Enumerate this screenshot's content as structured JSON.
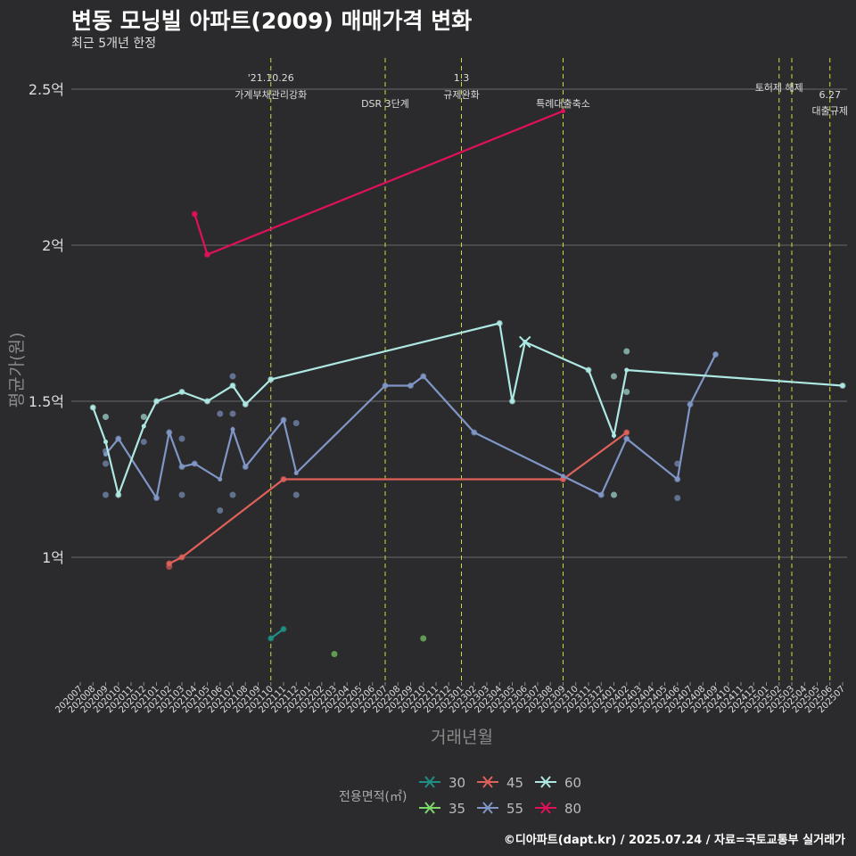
{
  "header": {
    "title": "변동 모닝빌 아파트(2009) 매매가격 변화",
    "subtitle": "최근 5개년 한정"
  },
  "credit": "©디아파트(dapt.kr) / 2025.07.24 / 자료=국토교통부 실거래가",
  "colors": {
    "background": "#2b2b2d",
    "grid": "#6a6a6a",
    "event_line": "#d8d838",
    "s30": "#1f8f86",
    "s35": "#7dd86a",
    "s45": "#e0605a",
    "s55": "#7f96c6",
    "s60": "#aee8e2",
    "s80": "#e0105a"
  },
  "chart_data": {
    "type": "line",
    "title": "변동 모닝빌 아파트(2009) 매매가격 변화",
    "xlabel": "거래년월",
    "ylabel": "평균가(원)",
    "ylim": [
      0.6,
      2.6
    ],
    "yticks": [
      1.0,
      1.5,
      2.0,
      2.5
    ],
    "ytick_labels": [
      "1억",
      "1.5억",
      "2억",
      "2.5억"
    ],
    "x_months": [
      "202007",
      "202008",
      "202009",
      "202010",
      "202011",
      "202012",
      "202101",
      "202102",
      "202103",
      "202104",
      "202105",
      "202106",
      "202107",
      "202108",
      "202109",
      "202110",
      "202111",
      "202112",
      "202201",
      "202202",
      "202203",
      "202204",
      "202205",
      "202206",
      "202207",
      "202208",
      "202209",
      "202210",
      "202211",
      "202212",
      "202301",
      "202302",
      "202303",
      "202304",
      "202305",
      "202306",
      "202307",
      "202308",
      "202309",
      "202310",
      "202311",
      "202312",
      "202401",
      "202402",
      "202403",
      "202404",
      "202405",
      "202406",
      "202407",
      "202408",
      "202409",
      "202410",
      "202411",
      "202412",
      "202501",
      "202502",
      "202503",
      "202504",
      "202505",
      "202506",
      "202507"
    ],
    "legend_title": "전용면적(㎡)",
    "legend_position": "bottom",
    "events": [
      {
        "x": 15,
        "label1": "'21.10.26",
        "label2": "가계부채관리강화"
      },
      {
        "x": 24,
        "label1": "",
        "label2": "DSR 3단계"
      },
      {
        "x": 30,
        "label1": "1.3",
        "label2": "규제완화"
      },
      {
        "x": 38,
        "label1": "",
        "label2": "특례대출축소"
      },
      {
        "x": 55,
        "label1": "",
        "label2": "토허제 해제"
      },
      {
        "x": 56,
        "label1": "",
        "label2": ""
      },
      {
        "x": 59,
        "label1": "6.27",
        "label2": "대출규제"
      }
    ],
    "series": [
      {
        "name": "30",
        "color": "#1f8f86",
        "line": [
          [
            15,
            0.74
          ],
          [
            16,
            0.77
          ]
        ],
        "points": [
          [
            15,
            0.74
          ],
          [
            16,
            0.77
          ]
        ]
      },
      {
        "name": "35",
        "color": "#7dd86a",
        "line": [],
        "points": [
          [
            20,
            0.69
          ],
          [
            27,
            0.74
          ]
        ]
      },
      {
        "name": "45",
        "color": "#e0605a",
        "line": [
          [
            7,
            0.98
          ],
          [
            8,
            1.0
          ],
          [
            16,
            1.25
          ],
          [
            38,
            1.25
          ],
          [
            43,
            1.4
          ]
        ],
        "points": [
          [
            7,
            0.98
          ],
          [
            7,
            0.97
          ],
          [
            8,
            1.0
          ],
          [
            16,
            1.25
          ],
          [
            38,
            1.25
          ],
          [
            43,
            1.4
          ]
        ]
      },
      {
        "name": "55",
        "color": "#7f96c6",
        "line": [
          [
            2,
            1.33
          ],
          [
            3,
            1.38
          ],
          [
            6,
            1.19
          ],
          [
            7,
            1.4
          ],
          [
            8,
            1.29
          ],
          [
            9,
            1.3
          ],
          [
            11,
            1.25
          ],
          [
            12,
            1.41
          ],
          [
            13,
            1.29
          ],
          [
            16,
            1.44
          ],
          [
            17,
            1.27
          ],
          [
            24,
            1.55
          ],
          [
            26,
            1.55
          ],
          [
            27,
            1.58
          ],
          [
            31,
            1.4
          ],
          [
            38,
            1.26
          ],
          [
            41,
            1.2
          ],
          [
            43,
            1.38
          ],
          [
            47,
            1.25
          ],
          [
            48,
            1.49
          ],
          [
            50,
            1.65
          ]
        ],
        "points": [
          [
            2,
            1.3
          ],
          [
            2,
            1.2
          ],
          [
            2,
            1.34
          ],
          [
            3,
            1.38
          ],
          [
            5,
            1.37
          ],
          [
            6,
            1.19
          ],
          [
            7,
            1.4
          ],
          [
            8,
            1.38
          ],
          [
            8,
            1.2
          ],
          [
            8,
            1.29
          ],
          [
            9,
            1.3
          ],
          [
            11,
            1.46
          ],
          [
            11,
            1.15
          ],
          [
            12,
            1.58
          ],
          [
            12,
            1.46
          ],
          [
            12,
            1.2
          ],
          [
            13,
            1.29
          ],
          [
            16,
            1.44
          ],
          [
            17,
            1.43
          ],
          [
            17,
            1.2
          ],
          [
            24,
            1.55
          ],
          [
            26,
            1.55
          ],
          [
            27,
            1.58
          ],
          [
            31,
            1.4
          ],
          [
            41,
            1.2
          ],
          [
            43,
            1.38
          ],
          [
            47,
            1.3
          ],
          [
            47,
            1.19
          ],
          [
            47,
            1.25
          ],
          [
            48,
            1.49
          ],
          [
            50,
            1.65
          ]
        ]
      },
      {
        "name": "60",
        "color": "#aee8e2",
        "line": [
          [
            1,
            1.48
          ],
          [
            2,
            1.37
          ],
          [
            3,
            1.2
          ],
          [
            5,
            1.42
          ],
          [
            6,
            1.5
          ],
          [
            8,
            1.53
          ],
          [
            10,
            1.5
          ],
          [
            12,
            1.55
          ],
          [
            13,
            1.49
          ],
          [
            15,
            1.57
          ],
          [
            33,
            1.75
          ],
          [
            34,
            1.5
          ],
          [
            35,
            1.69
          ],
          [
            40,
            1.6
          ],
          [
            42,
            1.39
          ],
          [
            43,
            1.6
          ],
          [
            60,
            1.55
          ]
        ],
        "points": [
          [
            1,
            1.48
          ],
          [
            2,
            1.45
          ],
          [
            3,
            1.2
          ],
          [
            5,
            1.45
          ],
          [
            6,
            1.5
          ],
          [
            8,
            1.53
          ],
          [
            10,
            1.5
          ],
          [
            12,
            1.55
          ],
          [
            13,
            1.49
          ],
          [
            15,
            1.57
          ],
          [
            33,
            1.75
          ],
          [
            34,
            1.5
          ],
          [
            40,
            1.6
          ],
          [
            42,
            1.2
          ],
          [
            42,
            1.58
          ],
          [
            43,
            1.66
          ],
          [
            43,
            1.53
          ],
          [
            60,
            1.55
          ]
        ],
        "markers_x": [
          [
            35,
            1.69
          ]
        ]
      },
      {
        "name": "80",
        "color": "#e0105a",
        "line": [
          [
            9,
            2.1
          ],
          [
            10,
            1.97
          ],
          [
            38,
            2.43
          ]
        ],
        "points": [
          [
            9,
            2.1
          ],
          [
            10,
            1.97
          ]
        ]
      }
    ]
  }
}
